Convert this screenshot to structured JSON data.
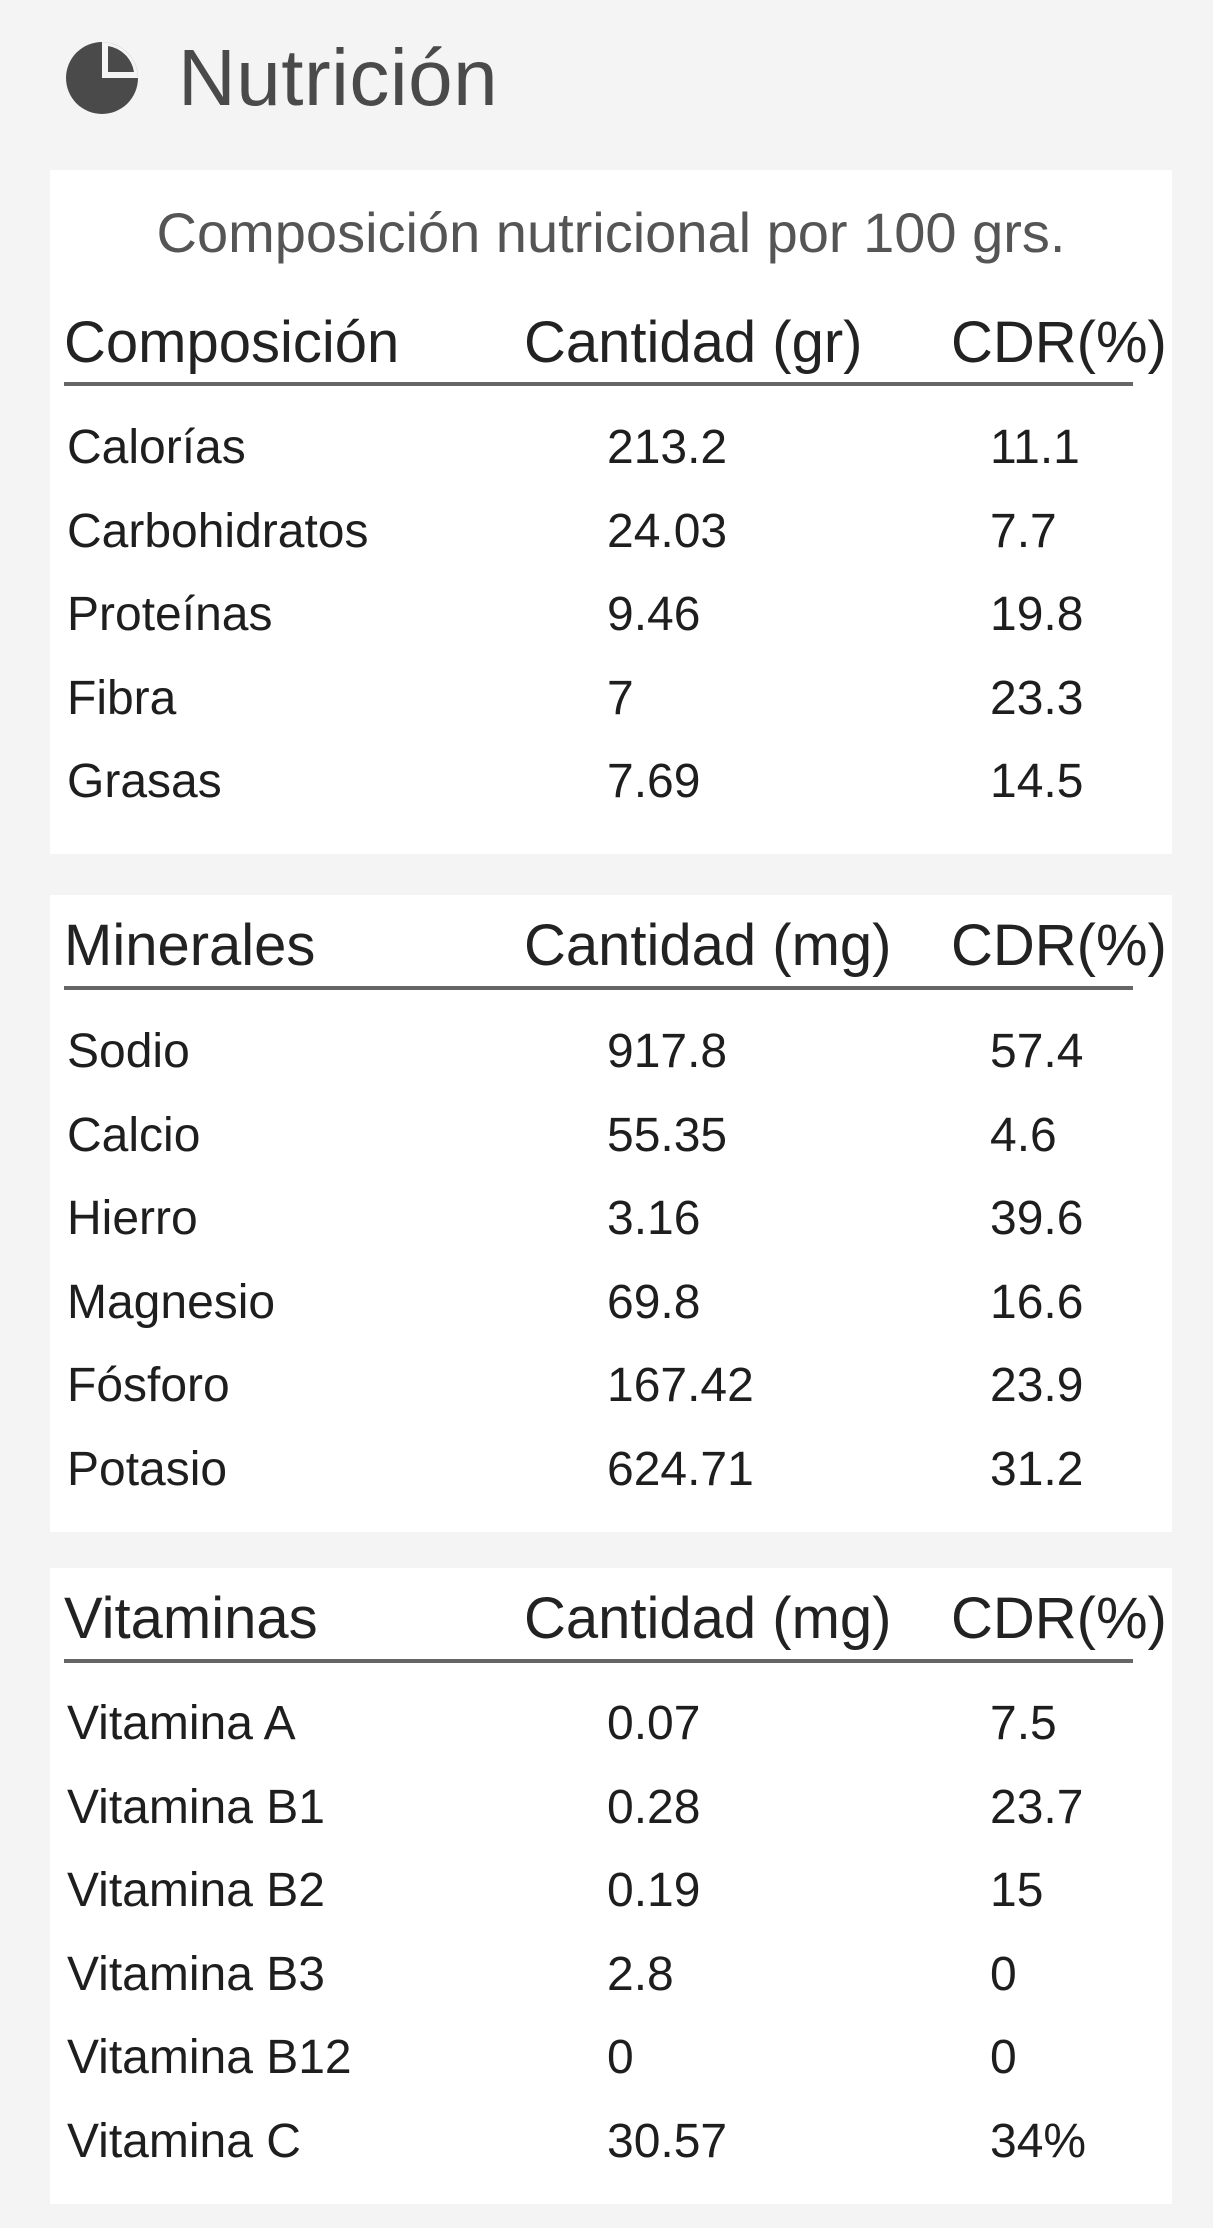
{
  "header": {
    "icon": "pie-chart-icon",
    "title": "Nutrición"
  },
  "composition": {
    "caption": "Composición nutricional por 100 grs.",
    "headers": [
      "Composición",
      "Cantidad (gr)",
      "CDR(%)"
    ],
    "rows": [
      [
        "Calorías",
        "213.2",
        "11.1"
      ],
      [
        "Carbohidratos",
        "24.03",
        "7.7"
      ],
      [
        "Proteínas",
        "9.46",
        "19.8"
      ],
      [
        "Fibra",
        "7",
        "23.3"
      ],
      [
        "Grasas",
        "7.69",
        "14.5"
      ]
    ]
  },
  "minerals": {
    "headers": [
      "Minerales",
      "Cantidad (mg)",
      "CDR(%)"
    ],
    "rows": [
      [
        "Sodio",
        "917.8",
        "57.4"
      ],
      [
        "Calcio",
        "55.35",
        "4.6"
      ],
      [
        "Hierro",
        "3.16",
        "39.6"
      ],
      [
        "Magnesio",
        "69.8",
        "16.6"
      ],
      [
        "Fósforo",
        "167.42",
        "23.9"
      ],
      [
        "Potasio",
        "624.71",
        "31.2"
      ]
    ]
  },
  "vitamins": {
    "headers": [
      "Vitaminas",
      "Cantidad (mg)",
      "CDR(%)"
    ],
    "rows": [
      [
        "Vitamina A",
        "0.07",
        "7.5"
      ],
      [
        "Vitamina B1",
        "0.28",
        "23.7"
      ],
      [
        "Vitamina B2",
        "0.19",
        "15"
      ],
      [
        "Vitamina B3",
        "2.8",
        "0"
      ],
      [
        "Vitamina B12",
        "0",
        "0"
      ],
      [
        "Vitamina C",
        "30.57",
        "34%"
      ]
    ]
  },
  "colors": {
    "background": "#f4f4f4",
    "card": "#ffffff",
    "icon": "#4a4a4a",
    "rule": "#666666"
  }
}
